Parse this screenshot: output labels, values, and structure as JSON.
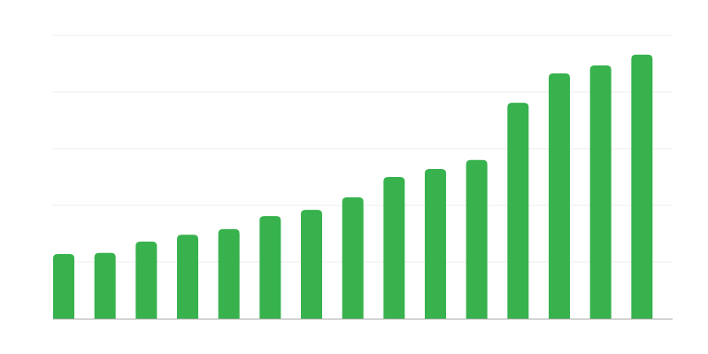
{
  "chart_data": {
    "type": "bar",
    "title": "",
    "xlabel": "",
    "ylabel": "",
    "values": [
      1.14,
      1.16,
      1.36,
      1.48,
      1.58,
      1.81,
      1.92,
      2.14,
      2.5,
      2.64,
      2.8,
      3.81,
      4.33,
      4.47,
      4.66
    ],
    "ylim": [
      0,
      5
    ],
    "gridlines": [
      1,
      2,
      3,
      4,
      5
    ],
    "grid": true,
    "tick_labels_shown": false,
    "colors": {
      "bar": "#37b24d",
      "grid": "#eeeeee",
      "axis": "#aaaaaa"
    }
  }
}
